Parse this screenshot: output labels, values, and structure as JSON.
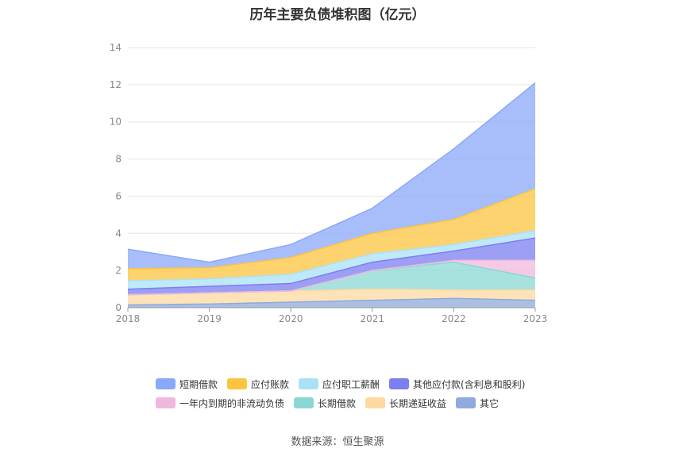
{
  "chart_data": {
    "type": "area",
    "stacked": true,
    "title": "历年主要负债堆积图（亿元）",
    "x": [
      "2018",
      "2019",
      "2020",
      "2021",
      "2022",
      "2023"
    ],
    "ylim": [
      0,
      14
    ],
    "yticks": [
      0,
      2,
      4,
      6,
      8,
      10,
      12,
      14
    ],
    "grid": true,
    "legend_position": "bottom",
    "series": [
      {
        "name": "其它",
        "color": "#8faadc",
        "values": [
          0.15,
          0.2,
          0.3,
          0.4,
          0.5,
          0.4
        ]
      },
      {
        "name": "长期递延收益",
        "color": "#ffd9a0",
        "values": [
          0.55,
          0.6,
          0.6,
          0.6,
          0.45,
          0.55
        ]
      },
      {
        "name": "长期借款",
        "color": "#8ad8d4",
        "values": [
          0,
          0,
          0,
          1.0,
          1.5,
          0.65
        ]
      },
      {
        "name": "一年内到期的非流动负债",
        "color": "#f0b8dc",
        "values": [
          0,
          0,
          0,
          0,
          0.1,
          0.95
        ]
      },
      {
        "name": "其他应付款(含利息和股利)",
        "color": "#7b7ff0",
        "values": [
          0.3,
          0.35,
          0.4,
          0.45,
          0.5,
          1.2
        ]
      },
      {
        "name": "应付职工薪酬",
        "color": "#a9e2f5",
        "values": [
          0.45,
          0.4,
          0.5,
          0.45,
          0.35,
          0.4
        ]
      },
      {
        "name": "应付账款",
        "color": "#fcc440",
        "values": [
          0.65,
          0.6,
          0.9,
          1.1,
          1.35,
          2.25
        ]
      },
      {
        "name": "短期借款",
        "color": "#8aa8f8",
        "values": [
          1.05,
          0.3,
          0.7,
          1.35,
          3.8,
          5.7
        ]
      }
    ],
    "legend_order": [
      "短期借款",
      "应付账款",
      "应付职工薪酬",
      "其他应付款(含利息和股利)",
      "一年内到期的非流动负债",
      "长期借款",
      "长期递延收益",
      "其它"
    ]
  },
  "source": "数据来源：恒生聚源"
}
